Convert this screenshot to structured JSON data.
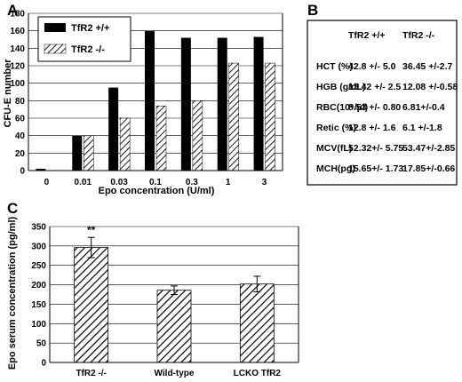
{
  "panels": {
    "a": "A",
    "b": "B",
    "c": "C"
  },
  "colors": {
    "solid_bar": "#000000",
    "axis": "#000000",
    "frame": "#000000"
  },
  "chart_data": [
    {
      "type": "bar",
      "panel": "A",
      "categories": [
        "0",
        "0.01",
        "0.03",
        "0.1",
        "0.3",
        "1",
        "3"
      ],
      "series": [
        {
          "name": "TfR2 +/+",
          "fill": "solid",
          "values": [
            2,
            40,
            95,
            160,
            152,
            152,
            153
          ]
        },
        {
          "name": "TfR2 -/-",
          "fill": "hatched",
          "values": [
            0,
            40,
            60,
            74,
            80,
            123,
            123
          ]
        }
      ],
      "xlabel": "Epo concentration (U/ml)",
      "ylabel": "CFU-E number",
      "ylim": [
        0,
        180
      ],
      "yticks": [
        "0",
        "20",
        "40",
        "60",
        "80",
        "100",
        "120",
        "140",
        "160",
        "180"
      ],
      "legend": "top-left"
    },
    {
      "type": "table",
      "panel": "B",
      "columns": [
        "TfR2 +/+",
        "TfR2 -/-"
      ],
      "rows": [
        {
          "label": "HCT (%)",
          "wt": "42.8 +/- 5.0",
          "ko": "36.45 +/-2.7"
        },
        {
          "label": "HGB (g/dL)",
          "wt": "13.42 +/- 2.5",
          "ko": "12.08 +/-0.58"
        },
        {
          "label": "RBC(10⁶/µl)",
          "wt": "8.53 +/- 0.80",
          "ko": "6.81+/-0.4"
        },
        {
          "label": "Retic (%)",
          "wt": "12.8 +/- 1.6",
          "ko": "6.1 +/-1.8"
        },
        {
          "label": "MCV(fL)",
          "wt": "52.32+/- 5.75",
          "ko": "53.47+/-2.85"
        },
        {
          "label": "MCH(pg)",
          "wt": "15.65+/- 1.73",
          "ko": "17.85+/-0.66"
        }
      ]
    },
    {
      "type": "bar",
      "panel": "C",
      "categories": [
        "TfR2 -/-",
        "Wild-type",
        "LCKO TfR2"
      ],
      "values": [
        296,
        186,
        202
      ],
      "errors": [
        26,
        11,
        20
      ],
      "annotations": [
        {
          "category": "TfR2 -/-",
          "text": "**"
        }
      ],
      "xlabel": "",
      "ylabel": "Epo serum concentration (pg/ml)",
      "ylim": [
        0,
        350
      ],
      "yticks": [
        "0",
        "50",
        "100",
        "150",
        "200",
        "250",
        "300",
        "350"
      ]
    }
  ]
}
